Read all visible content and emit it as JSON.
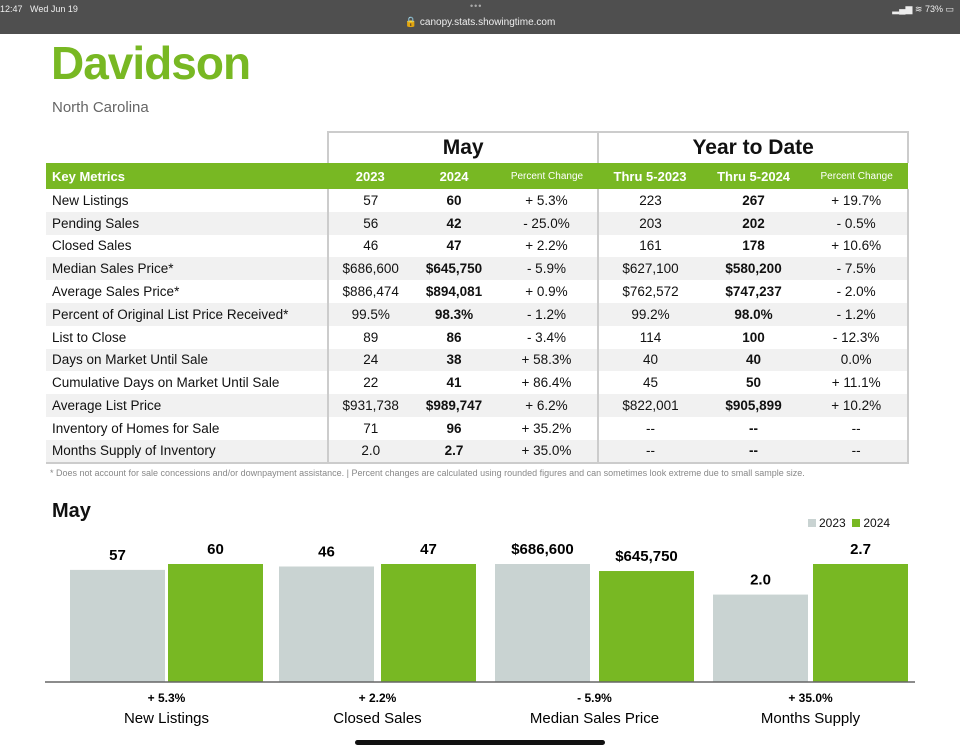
{
  "statusbar": {
    "time": "12:47",
    "date": "Wed Jun 19",
    "url": "canopy.stats.showingtime.com",
    "battery": "73%"
  },
  "title": "Davidson",
  "subtitle": "North Carolina",
  "table": {
    "group_may": "May",
    "group_ytd": "Year to Date",
    "headers": [
      "Key Metrics",
      "2023",
      "2024",
      "Percent Change",
      "Thru 5-2023",
      "Thru 5-2024",
      "Percent Change"
    ],
    "rows": [
      [
        "New Listings",
        "57",
        "60",
        "+ 5.3%",
        "223",
        "267",
        "+ 19.7%"
      ],
      [
        "Pending Sales",
        "56",
        "42",
        "- 25.0%",
        "203",
        "202",
        "- 0.5%"
      ],
      [
        "Closed Sales",
        "46",
        "47",
        "+ 2.2%",
        "161",
        "178",
        "+ 10.6%"
      ],
      [
        "Median Sales Price*",
        "$686,600",
        "$645,750",
        "- 5.9%",
        "$627,100",
        "$580,200",
        "- 7.5%"
      ],
      [
        "Average Sales Price*",
        "$886,474",
        "$894,081",
        "+ 0.9%",
        "$762,572",
        "$747,237",
        "- 2.0%"
      ],
      [
        "Percent of Original List Price Received*",
        "99.5%",
        "98.3%",
        "- 1.2%",
        "99.2%",
        "98.0%",
        "- 1.2%"
      ],
      [
        "List to Close",
        "89",
        "86",
        "- 3.4%",
        "114",
        "100",
        "- 12.3%"
      ],
      [
        "Days on Market Until Sale",
        "24",
        "38",
        "+ 58.3%",
        "40",
        "40",
        "0.0%"
      ],
      [
        "Cumulative Days on Market Until Sale",
        "22",
        "41",
        "+ 86.4%",
        "45",
        "50",
        "+ 11.1%"
      ],
      [
        "Average List Price",
        "$931,738",
        "$989,747",
        "+ 6.2%",
        "$822,001",
        "$905,899",
        "+ 10.2%"
      ],
      [
        "Inventory of Homes for Sale",
        "71",
        "96",
        "+ 35.2%",
        "--",
        "--",
        "--"
      ],
      [
        "Months Supply of Inventory",
        "2.0",
        "2.7",
        "+ 35.0%",
        "--",
        "--",
        "--"
      ]
    ]
  },
  "footnote": "* Does not account for sale concessions and/or downpayment assistance.  |  Percent changes are calculated using rounded figures and can sometimes look extreme due to small sample size.",
  "chart_data": {
    "type": "bar",
    "title": "May",
    "legend": [
      "2023",
      "2024"
    ],
    "legend_position": "top-right",
    "colors": {
      "2023": "#c9d3d2",
      "2024": "#78b823"
    },
    "categories": [
      "New Listings",
      "Closed Sales",
      "Median Sales Price",
      "Months Supply"
    ],
    "series": [
      {
        "name": "2023",
        "values": [
          57,
          46,
          686600,
          2.0
        ],
        "labels": [
          "57",
          "46",
          "$686,600",
          "2.0"
        ]
      },
      {
        "name": "2024",
        "values": [
          60,
          47,
          645750,
          2.7
        ],
        "labels": [
          "60",
          "47",
          "$645,750",
          "2.7"
        ]
      }
    ],
    "changes": [
      "+ 5.3%",
      "+ 2.2%",
      "- 5.9%",
      "+ 35.0%"
    ]
  }
}
